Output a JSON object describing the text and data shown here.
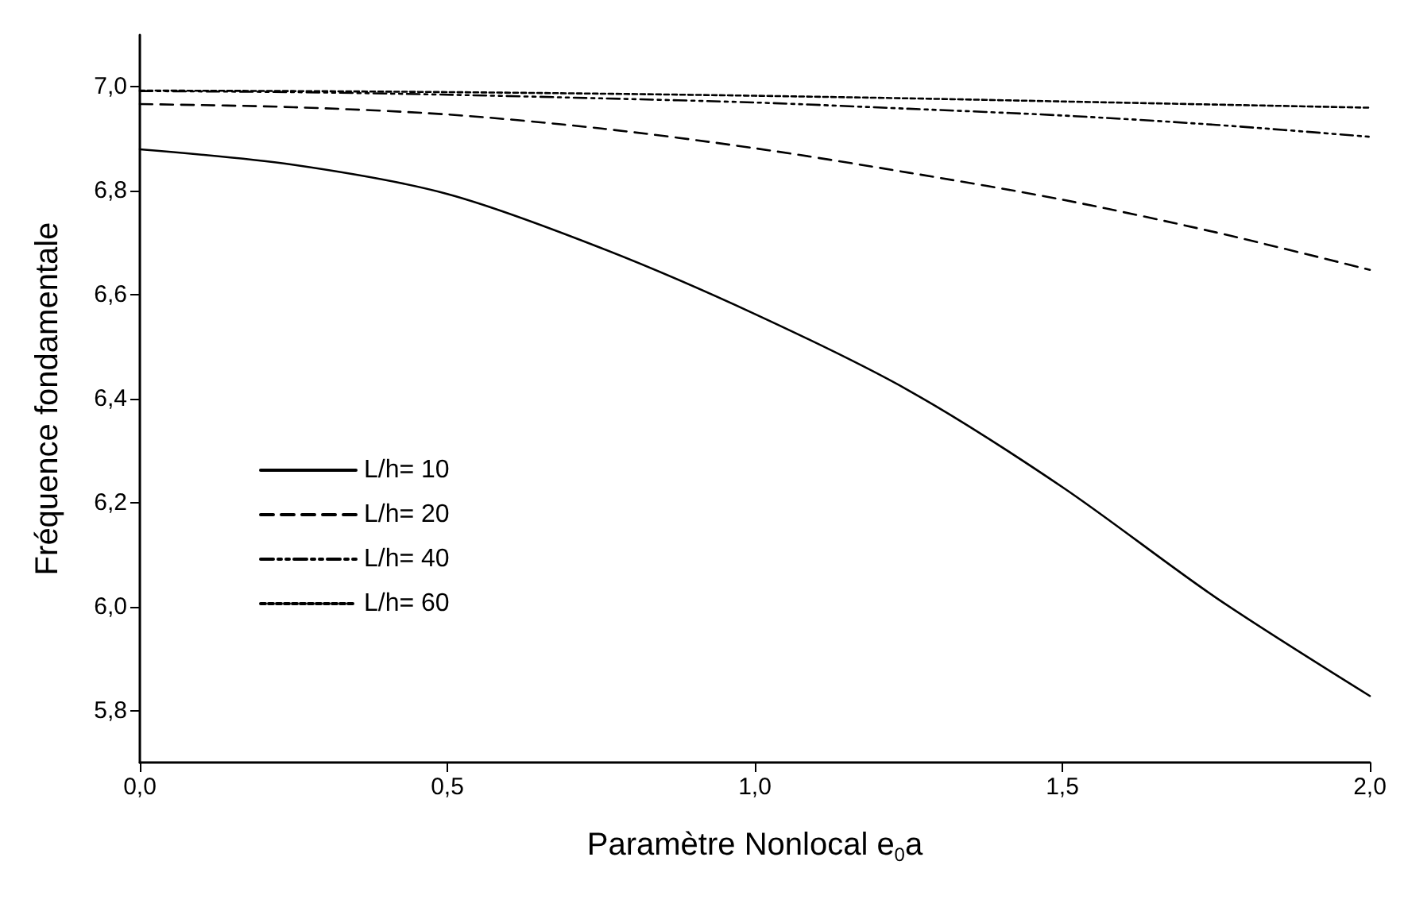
{
  "chart_data": {
    "type": "line",
    "xlabel": "Paramètre Nonlocal e$_{0}$a",
    "ylabel": "Fréquence fondamentale",
    "x": [
      0,
      0.25,
      0.5,
      0.75,
      1.0,
      1.25,
      1.5,
      1.75,
      2.0
    ],
    "series": [
      {
        "name": "L/h= 10",
        "color": "#000000",
        "line_style": "solid",
        "values": [
          6.88,
          6.85,
          6.794,
          6.69,
          6.563,
          6.416,
          6.23,
          6.017,
          5.828
        ]
      },
      {
        "name": "L/h= 20",
        "color": "#000000",
        "line_style": "dashed",
        "values": [
          6.967,
          6.961,
          6.947,
          6.92,
          6.882,
          6.835,
          6.783,
          6.72,
          6.648
        ]
      },
      {
        "name": "L/h= 40",
        "color": "#000000",
        "line_style": "dashdotdot",
        "values": [
          6.992,
          6.99,
          6.985,
          6.978,
          6.97,
          6.958,
          6.945,
          6.927,
          6.904
        ]
      },
      {
        "name": "L/h= 60",
        "color": "#000000",
        "line_style": "dotted",
        "values": [
          6.993,
          6.992,
          6.99,
          6.987,
          6.983,
          6.978,
          6.972,
          6.966,
          6.96
        ]
      }
    ],
    "xlim": [
      0,
      2.0
    ],
    "xticks": [
      {
        "value": 0,
        "label": "0,0"
      },
      {
        "value": 0.5,
        "label": "0,5"
      },
      {
        "value": 1.0,
        "label": "1,0"
      },
      {
        "value": 1.5,
        "label": "1,5"
      },
      {
        "value": 2.0,
        "label": "2,0"
      }
    ],
    "ylim": [
      5.7,
      7.1
    ],
    "yticks": [
      {
        "value": 5.8,
        "label": "5,8"
      },
      {
        "value": 6.0,
        "label": "6,0"
      },
      {
        "value": 6.2,
        "label": "6,2"
      },
      {
        "value": 6.4,
        "label": "6,4"
      },
      {
        "value": 6.6,
        "label": "6,6"
      },
      {
        "value": 6.8,
        "label": "6,8"
      },
      {
        "value": 7.0,
        "label": "7,0"
      }
    ],
    "grid": false,
    "legend": "bottom left",
    "marker": "none"
  }
}
